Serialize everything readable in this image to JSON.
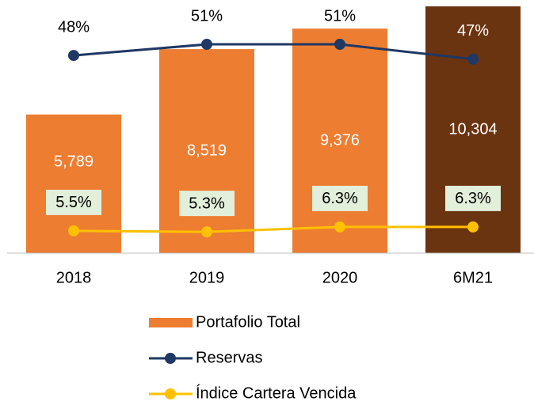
{
  "chart_data": {
    "type": "bar",
    "categories": [
      "2018",
      "2019",
      "2020",
      "6M21"
    ],
    "ylim": [
      0,
      10570
    ],
    "y2lim": [
      -5.5,
      63
    ],
    "y3lim": [
      1,
      52.2
    ],
    "series": [
      {
        "name": "Portafolio Total",
        "type": "bar",
        "color": "#ED7D31",
        "colors": [
          "#ED7D31",
          "#ED7D31",
          "#ED7D31",
          "#6B3410"
        ],
        "values": [
          5789,
          8519,
          9376,
          10304
        ],
        "value_labels": [
          "5,789",
          "8,519",
          "9,376",
          "10,304"
        ]
      },
      {
        "name": "Reservas",
        "type": "line",
        "axis": "y2",
        "color": "#1F3864",
        "values": [
          48,
          51,
          51,
          47
        ],
        "value_labels": [
          "48%",
          "51%",
          "51%",
          "47%"
        ]
      },
      {
        "name": "Índice Cartera Vencida",
        "type": "line",
        "axis": "y3",
        "color": "#FFC000",
        "values": [
          5.5,
          5.3,
          6.3,
          6.3
        ],
        "value_labels": [
          "5.5%",
          "5.3%",
          "6.3%",
          "6.3%"
        ]
      }
    ],
    "legend": "bottom"
  }
}
